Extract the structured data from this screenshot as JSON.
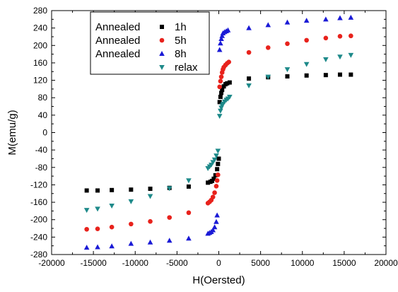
{
  "chart_data": {
    "type": "scatter",
    "title": "",
    "xlabel": "H(Oersted)",
    "ylabel": "M(emu/g)",
    "xlim": [
      -20000,
      20000
    ],
    "ylim": [
      -280,
      280
    ],
    "xticks": [
      -20000,
      -15000,
      -10000,
      -5000,
      0,
      5000,
      10000,
      15000,
      20000
    ],
    "yticks": [
      -280,
      -240,
      -200,
      -160,
      -120,
      -80,
      -40,
      0,
      40,
      80,
      120,
      160,
      200,
      240,
      280
    ],
    "grid": false,
    "legend_position": "top-left",
    "series": [
      {
        "name": "1h",
        "legend_prefix": "Annealed",
        "marker": "square",
        "color": "#000000",
        "points": [
          [
            -15800,
            -133
          ],
          [
            -14500,
            -133
          ],
          [
            -12800,
            -132
          ],
          [
            -10500,
            -131
          ],
          [
            -8200,
            -129
          ],
          [
            -5900,
            -127
          ],
          [
            -3600,
            -124
          ],
          [
            -1300,
            -115
          ],
          [
            -1000,
            -113
          ],
          [
            -800,
            -111
          ],
          [
            -600,
            -106
          ],
          [
            -400,
            -98
          ],
          [
            -200,
            -84
          ],
          [
            -100,
            -72
          ],
          [
            0,
            -60
          ],
          [
            100,
            70
          ],
          [
            200,
            82
          ],
          [
            300,
            91
          ],
          [
            400,
            98
          ],
          [
            600,
            106
          ],
          [
            800,
            111
          ],
          [
            1000,
            113
          ],
          [
            1300,
            115
          ],
          [
            3600,
            124
          ],
          [
            5900,
            127
          ],
          [
            8200,
            129
          ],
          [
            10500,
            131
          ],
          [
            12800,
            132
          ],
          [
            14500,
            133
          ],
          [
            15800,
            133
          ]
        ]
      },
      {
        "name": "5h",
        "legend_prefix": "Annealed",
        "marker": "circle",
        "color": "#e8221c",
        "points": [
          [
            -15800,
            -222
          ],
          [
            -14500,
            -221
          ],
          [
            -12800,
            -217
          ],
          [
            -10500,
            -210
          ],
          [
            -8200,
            -204
          ],
          [
            -5900,
            -195
          ],
          [
            -3600,
            -184
          ],
          [
            -1300,
            -162
          ],
          [
            -1100,
            -159
          ],
          [
            -900,
            -155
          ],
          [
            -700,
            -148
          ],
          [
            -500,
            -138
          ],
          [
            -300,
            -123
          ],
          [
            -200,
            -110
          ],
          [
            -100,
            -97
          ],
          [
            100,
            105
          ],
          [
            200,
            118
          ],
          [
            300,
            128
          ],
          [
            400,
            138
          ],
          [
            500,
            145
          ],
          [
            600,
            150
          ],
          [
            800,
            155
          ],
          [
            1000,
            159
          ],
          [
            1200,
            162
          ],
          [
            3600,
            184
          ],
          [
            5900,
            195
          ],
          [
            8200,
            204
          ],
          [
            10500,
            212
          ],
          [
            12800,
            217
          ],
          [
            14500,
            221
          ],
          [
            15800,
            222
          ]
        ]
      },
      {
        "name": "8h",
        "legend_prefix": "Annealed",
        "marker": "triangle-up",
        "color": "#1a1ad6",
        "points": [
          [
            -15800,
            -264
          ],
          [
            -14500,
            -263
          ],
          [
            -12800,
            -261
          ],
          [
            -10500,
            -255
          ],
          [
            -8200,
            -252
          ],
          [
            -5900,
            -248
          ],
          [
            -3600,
            -243
          ],
          [
            -1300,
            -232
          ],
          [
            -1100,
            -230
          ],
          [
            -900,
            -228
          ],
          [
            -700,
            -224
          ],
          [
            -500,
            -217
          ],
          [
            -300,
            -205
          ],
          [
            -200,
            -190
          ],
          [
            100,
            190
          ],
          [
            200,
            205
          ],
          [
            300,
            215
          ],
          [
            400,
            222
          ],
          [
            500,
            228
          ],
          [
            700,
            231
          ],
          [
            900,
            233
          ],
          [
            1100,
            235
          ],
          [
            3600,
            240
          ],
          [
            5900,
            247
          ],
          [
            8200,
            253
          ],
          [
            10500,
            257
          ],
          [
            12800,
            260
          ],
          [
            14500,
            263
          ],
          [
            15800,
            264
          ]
        ]
      },
      {
        "name": "relax",
        "legend_prefix": "",
        "marker": "triangle-down",
        "color": "#1e8a8a",
        "points": [
          [
            -15800,
            -178
          ],
          [
            -14500,
            -175
          ],
          [
            -12800,
            -168
          ],
          [
            -10500,
            -158
          ],
          [
            -8200,
            -146
          ],
          [
            -5900,
            -128
          ],
          [
            -3600,
            -110
          ],
          [
            -1300,
            -82
          ],
          [
            -1100,
            -78
          ],
          [
            -900,
            -74
          ],
          [
            -700,
            -68
          ],
          [
            -500,
            -62
          ],
          [
            -300,
            -53
          ],
          [
            -100,
            -42
          ],
          [
            100,
            38
          ],
          [
            200,
            50
          ],
          [
            300,
            57
          ],
          [
            400,
            62
          ],
          [
            500,
            66
          ],
          [
            700,
            71
          ],
          [
            900,
            75
          ],
          [
            1100,
            78
          ],
          [
            1300,
            82
          ],
          [
            3600,
            108
          ],
          [
            5900,
            128
          ],
          [
            8200,
            145
          ],
          [
            10500,
            157
          ],
          [
            12800,
            168
          ],
          [
            14500,
            174
          ],
          [
            15800,
            178
          ]
        ]
      }
    ]
  }
}
